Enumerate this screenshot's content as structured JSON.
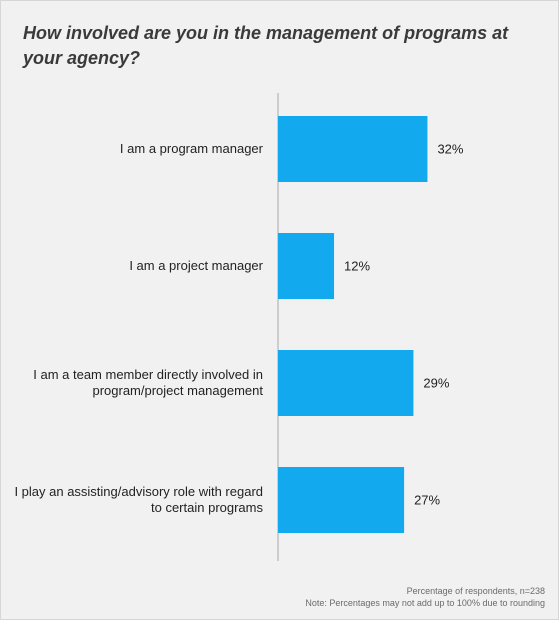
{
  "chart_data": {
    "type": "bar",
    "orientation": "horizontal",
    "title": "How involved are you in the management of programs at your agency?",
    "categories": [
      "I am a program manager",
      "I am a project manager",
      "I am a team member directly involved in program/project management",
      "I play an assisting/advisory role with regard to certain programs"
    ],
    "values": [
      32,
      12,
      29,
      27
    ],
    "value_labels": [
      "32%",
      "12%",
      "29%",
      "27%"
    ],
    "xlim": [
      0,
      55
    ],
    "grid": false,
    "legend": "none",
    "bar_color": "#12a9ef"
  },
  "footnotes": {
    "line1": "Percentage of respondents, n=238",
    "line2": "Note: Percentages may not add up to 100% due to rounding"
  }
}
